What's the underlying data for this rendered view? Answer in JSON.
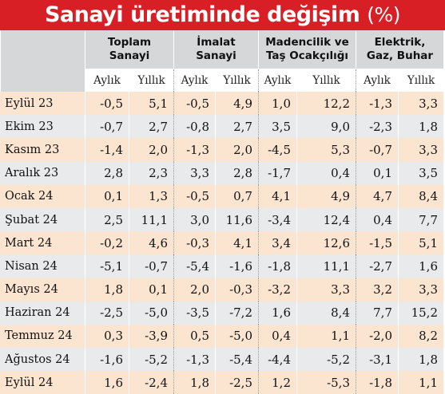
{
  "title": {
    "main": "Sanayi üretiminde değişim",
    "unit": "(%)"
  },
  "groups": [
    {
      "label": "Toplam\nSanayi"
    },
    {
      "label": "İmalat\nSanayi"
    },
    {
      "label": "Madencilik ve\nTaş Ocakçılığı"
    },
    {
      "label": "Elektrik,\nGaz, Buhar"
    }
  ],
  "subheaders": [
    "Aylık",
    "Yıllık",
    "Aylık",
    "Yıllık",
    "Aylık",
    "Yıllık",
    "Aylık",
    "Yıllık"
  ],
  "rows": [
    {
      "label": "Eylül 23",
      "values": [
        "-0,5",
        "5,1",
        "-0,5",
        "4,9",
        "1,0",
        "12,2",
        "-1,3",
        "3,3"
      ]
    },
    {
      "label": "Ekim 23",
      "values": [
        "-0,7",
        "2,7",
        "-0,8",
        "2,7",
        "3,5",
        "9,0",
        "-2,3",
        "1,8"
      ]
    },
    {
      "label": "Kasım 23",
      "values": [
        "-1,4",
        "2,0",
        "-1,3",
        "2,0",
        "-4,5",
        "5,3",
        "-0,7",
        "3,3"
      ]
    },
    {
      "label": "Aralık 23",
      "values": [
        "2,8",
        "2,3",
        "3,3",
        "2,8",
        "-1,7",
        "0,4",
        "0,1",
        "3,5"
      ]
    },
    {
      "label": "Ocak 24",
      "values": [
        "0,1",
        "1,3",
        "-0,5",
        "0,7",
        "4,1",
        "4,9",
        "4,7",
        "8,4"
      ]
    },
    {
      "label": "Şubat 24",
      "values": [
        "2,5",
        "11,1",
        "3,0",
        "11,6",
        "-3,4",
        "12,4",
        "0,4",
        "7,7"
      ]
    },
    {
      "label": "Mart 24",
      "values": [
        "-0,2",
        "4,6",
        "-0,3",
        "4,1",
        "3,4",
        "12,6",
        "-1,5",
        "5,1"
      ]
    },
    {
      "label": "Nisan 24",
      "values": [
        "-5,1",
        "-0,7",
        "-5,4",
        "-1,6",
        "-1,8",
        "11,1",
        "-2,7",
        "1,6"
      ]
    },
    {
      "label": "Mayıs 24",
      "values": [
        "1,8",
        "0,1",
        "2,0",
        "-0,3",
        "-3,2",
        "3,3",
        "3,2",
        "3,3"
      ]
    },
    {
      "label": "Haziran 24",
      "values": [
        "-2,5",
        "-5,0",
        "-3,5",
        "-7,2",
        "1,6",
        "8,4",
        "7,7",
        "15,2"
      ]
    },
    {
      "label": "Temmuz 24",
      "values": [
        "0,3",
        "-3,9",
        "0,5",
        "-5,0",
        "0,4",
        "1,1",
        "-2,0",
        "8,2"
      ]
    },
    {
      "label": "Ağustos 24",
      "values": [
        "-1,6",
        "-5,2",
        "-1,3",
        "-5,4",
        "-4,4",
        "-5,2",
        "-3,1",
        "1,8"
      ]
    },
    {
      "label": "Eylül 24",
      "values": [
        "1,6",
        "-2,4",
        "1,8",
        "-2,5",
        "1,2",
        "-5,3",
        "-1,8",
        "1,1"
      ]
    }
  ],
  "colors": {
    "title_bg": "#d81f26",
    "header_bg": "#d6d7d9",
    "row_odd": "#fbe5d1",
    "row_even": "#e9eaeb"
  }
}
